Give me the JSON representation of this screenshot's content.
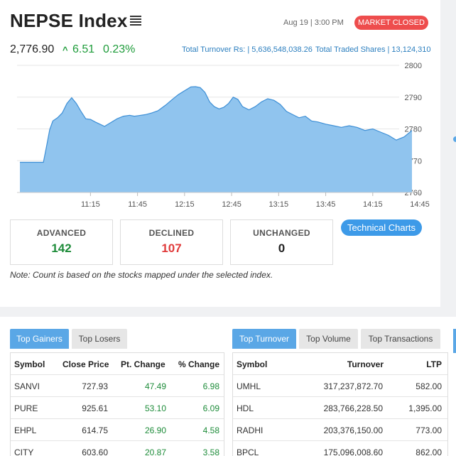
{
  "header": {
    "title": "NEPSE Index",
    "datetime": "Aug 19 | 3:00 PM",
    "status": "MARKET CLOSED"
  },
  "summary": {
    "index_value": "2,776.90",
    "arrow": "^",
    "change_points": "6.51",
    "change_percent": "0.23%",
    "total_turnover": "Total Turnover Rs: | 5,636,548,038.26",
    "total_traded_shares": "Total Traded Shares | 13,124,310"
  },
  "chart_data": {
    "type": "area",
    "x_tick_labels": [
      "11:15",
      "11:45",
      "12:15",
      "12:45",
      "13:15",
      "13:45",
      "14:15",
      "14:45"
    ],
    "y_tick_labels": [
      "2800",
      "2790",
      "2780",
      "2770",
      "2760"
    ],
    "ylim": [
      2760,
      2800
    ],
    "x_minutes": [
      0,
      15,
      17,
      19,
      21,
      24,
      27,
      30,
      33,
      36,
      39,
      42,
      45,
      48,
      51,
      54,
      58,
      62,
      66,
      70,
      73,
      76,
      80,
      84,
      88,
      93,
      97,
      101,
      105,
      109,
      112,
      115,
      118,
      121,
      124,
      127,
      130,
      133,
      136,
      139,
      142,
      146,
      150,
      154,
      158,
      162,
      166,
      170,
      174,
      178,
      182,
      186,
      190,
      195,
      200,
      205,
      210,
      215,
      220,
      225,
      230,
      235,
      240,
      245,
      250
    ],
    "values": [
      2769.5,
      2769.5,
      2774.5,
      2779.8,
      2782.5,
      2783.5,
      2785.0,
      2788.0,
      2789.8,
      2788.0,
      2785.5,
      2783.2,
      2783.0,
      2782.2,
      2781.5,
      2780.8,
      2782.0,
      2783.2,
      2784.0,
      2784.3,
      2784.0,
      2784.2,
      2784.5,
      2785.0,
      2785.7,
      2787.5,
      2789.2,
      2790.8,
      2792.0,
      2793.2,
      2793.3,
      2793.0,
      2791.5,
      2788.5,
      2787.0,
      2786.3,
      2786.8,
      2788.0,
      2790.0,
      2789.3,
      2787.0,
      2786.0,
      2787.0,
      2788.5,
      2789.5,
      2789.0,
      2787.7,
      2785.5,
      2784.5,
      2783.5,
      2784.0,
      2782.5,
      2782.2,
      2781.5,
      2781.0,
      2780.5,
      2781.0,
      2780.5,
      2779.5,
      2780.0,
      2779.0,
      2778.0,
      2776.5,
      2777.5,
      2779.5
    ],
    "line_color": "#3d8fd6",
    "fill_color": "#90c4ee",
    "grid": true
  },
  "counts": {
    "advanced_label": "ADVANCED",
    "advanced_value": "142",
    "declined_label": "DECLINED",
    "declined_value": "107",
    "unchanged_label": "UNCHANGED",
    "unchanged_value": "0"
  },
  "technical_charts_label": "Technical Charts",
  "note": "Note: Count is based on the stocks mapped under the selected index.",
  "left_tabs": [
    "Top Gainers",
    "Top Losers"
  ],
  "right_tabs": [
    "Top Turnover",
    "Top Volume",
    "Top Transactions"
  ],
  "gainers": {
    "headers": [
      "Symbol",
      "Close Price",
      "Pt. Change",
      "% Change"
    ],
    "rows": [
      [
        "SANVI",
        "727.93",
        "47.49",
        "6.98"
      ],
      [
        "PURE",
        "925.61",
        "53.10",
        "6.09"
      ],
      [
        "EHPL",
        "614.75",
        "26.90",
        "4.58"
      ],
      [
        "CITY",
        "603.60",
        "20.87",
        "3.58"
      ]
    ]
  },
  "turnover": {
    "headers": [
      "Symbol",
      "Turnover",
      "LTP"
    ],
    "rows": [
      [
        "UMHL",
        "317,237,872.70",
        "582.00"
      ],
      [
        "HDL",
        "283,766,228.50",
        "1,395.00"
      ],
      [
        "RADHI",
        "203,376,150.00",
        "773.00"
      ],
      [
        "BPCL",
        "175,096,008.60",
        "862.00"
      ]
    ]
  },
  "colors": {
    "accent": "#5aa7e6",
    "closed": "#ee4d4d",
    "up": "#1e8c3a",
    "down": "#e03b3b"
  }
}
